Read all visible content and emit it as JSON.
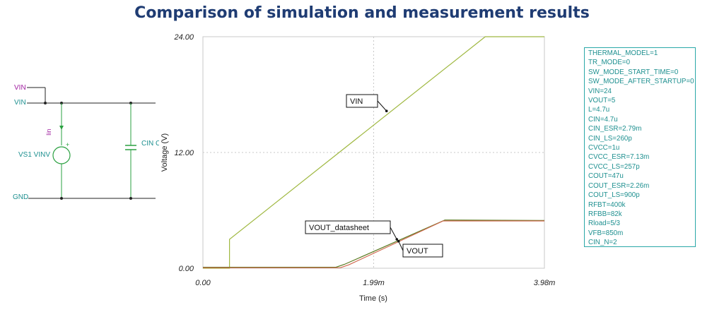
{
  "page": {
    "title": "Comparison of simulation and measurement results"
  },
  "schematic": {
    "labels": {
      "vin_port": "VIN",
      "vin_net": "VIN",
      "gnd": "GND",
      "source": "VS1 VINV",
      "current_probe": "Iin",
      "capacitor": "CIN C",
      "plus": "+"
    }
  },
  "chart_data": {
    "type": "line",
    "title": "",
    "xlabel": "Time (s)",
    "ylabel": "Voltage (V)",
    "xlim": [
      0,
      0.00398
    ],
    "ylim": [
      0,
      24
    ],
    "x_ticks": [
      0,
      0.00199,
      0.00398
    ],
    "x_tick_labels": [
      "0.00",
      "1.99m",
      "3.98m"
    ],
    "y_ticks": [
      0,
      12,
      24
    ],
    "y_tick_labels": [
      "0.00",
      "12.00",
      "24.00"
    ],
    "grid": true,
    "colors": {
      "VIN": "#9fb840",
      "VOUT": "#5a7a20",
      "VOUT_datasheet": "#d06a50"
    },
    "series": [
      {
        "name": "VIN",
        "x": [
          0,
          0.00031,
          0.00031,
          0.00329,
          0.00398
        ],
        "y": [
          0,
          0,
          3.0,
          24,
          24
        ]
      },
      {
        "name": "VOUT",
        "x": [
          0,
          0.00155,
          0.00165,
          0.00282,
          0.00398
        ],
        "y": [
          0.1,
          0.1,
          0.4,
          5.0,
          4.95
        ]
      },
      {
        "name": "VOUT_datasheet",
        "x": [
          0,
          0.0016,
          0.0017,
          0.0028,
          0.00398
        ],
        "y": [
          0.05,
          0.05,
          0.35,
          4.9,
          4.9
        ]
      }
    ],
    "annotations": [
      {
        "text": "VIN",
        "target_x": 0.00214,
        "target_y": 16.3
      },
      {
        "text": "VOUT_datasheet",
        "target_x": 0.00226,
        "target_y": 3.0
      },
      {
        "text": "VOUT",
        "target_x": 0.00228,
        "target_y": 2.8
      }
    ]
  },
  "parameters": {
    "lines": [
      "THERMAL_MODEL=1",
      "TR_MODE=0",
      "SW_MODE_START_TIME=0",
      "SW_MODE_AFTER_STARTUP=0",
      "VIN=24",
      "VOUT=5",
      "L=4.7u",
      "CIN=4.7u",
      "CIN_ESR=2.79m",
      "CIN_LS=260p",
      "CVCC=1u",
      "CVCC_ESR=7.13m",
      "CVCC_LS=257p",
      "COUT=47u",
      "COUT_ESR=2.26m",
      "COUT_LS=900p",
      "RFBT=400k",
      "RFBB=82k",
      "Rload=5/3",
      "VFB=850m",
      "CIN_N=2"
    ]
  }
}
